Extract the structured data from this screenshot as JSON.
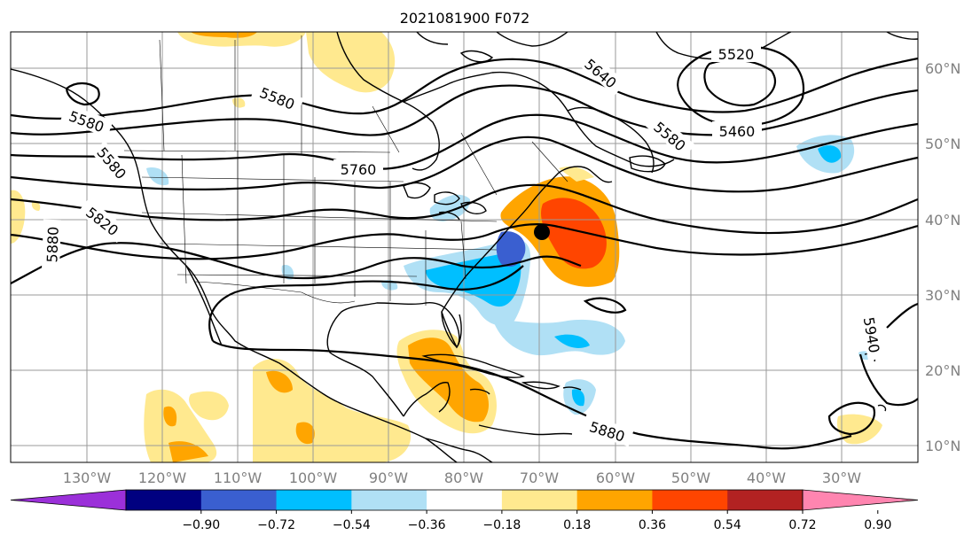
{
  "title": "2021081900 F072",
  "longitude_labels": [
    "130°W",
    "120°W",
    "110°W",
    "100°W",
    "90°W",
    "80°W",
    "70°W",
    "60°W",
    "50°W",
    "40°W",
    "30°W"
  ],
  "latitude_labels": [
    "60°N",
    "50°N",
    "40°N",
    "30°N",
    "20°N",
    "10°N"
  ],
  "contour_labels": [
    "5520",
    "5580",
    "5460",
    "5640",
    "5580",
    "5760",
    "5580",
    "5580",
    "5820",
    "5880",
    "5880",
    "5940"
  ],
  "colorbar": {
    "ticks": [
      "−0.90",
      "−0.72",
      "−0.54",
      "−0.36",
      "−0.18",
      "0.18",
      "0.36",
      "0.54",
      "0.72",
      "0.90"
    ],
    "colors": [
      "#9b30d9",
      "#000080",
      "#3a5fd0",
      "#00bfff",
      "#b0e0f5",
      "#ffffff",
      "#ffe98f",
      "#ffa500",
      "#ff4500",
      "#b22222",
      "#ff85b0"
    ]
  },
  "colors": {
    "grid": "#9a9a9a",
    "contour": "#000000"
  },
  "marker": "storm-center-dot"
}
